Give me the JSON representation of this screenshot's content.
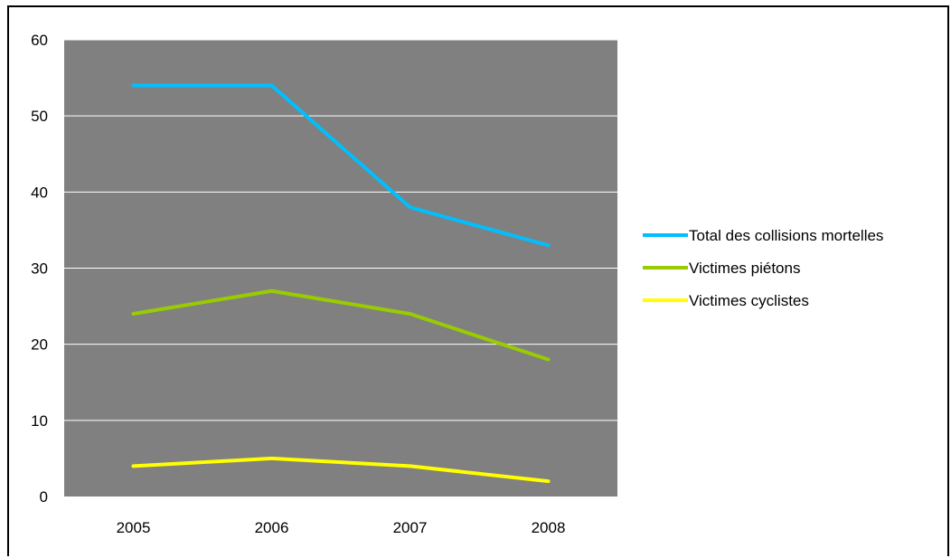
{
  "chart_data": {
    "type": "line",
    "categories": [
      "2005",
      "2006",
      "2007",
      "2008"
    ],
    "ylim": [
      0,
      60
    ],
    "yticks": [
      0,
      10,
      20,
      30,
      40,
      50,
      60
    ],
    "grid": true,
    "plot_background": "#808080",
    "legend_position": "right",
    "series": [
      {
        "name": "Total des collisions mortelles",
        "color": "#00BFFF",
        "values": [
          54,
          54,
          38,
          33
        ]
      },
      {
        "name": "Victimes piétons",
        "color": "#99CC00",
        "values": [
          24,
          27,
          24,
          18
        ]
      },
      {
        "name": "Victimes cyclistes",
        "color": "#FFFF00",
        "values": [
          4,
          5,
          4,
          2
        ]
      }
    ]
  }
}
